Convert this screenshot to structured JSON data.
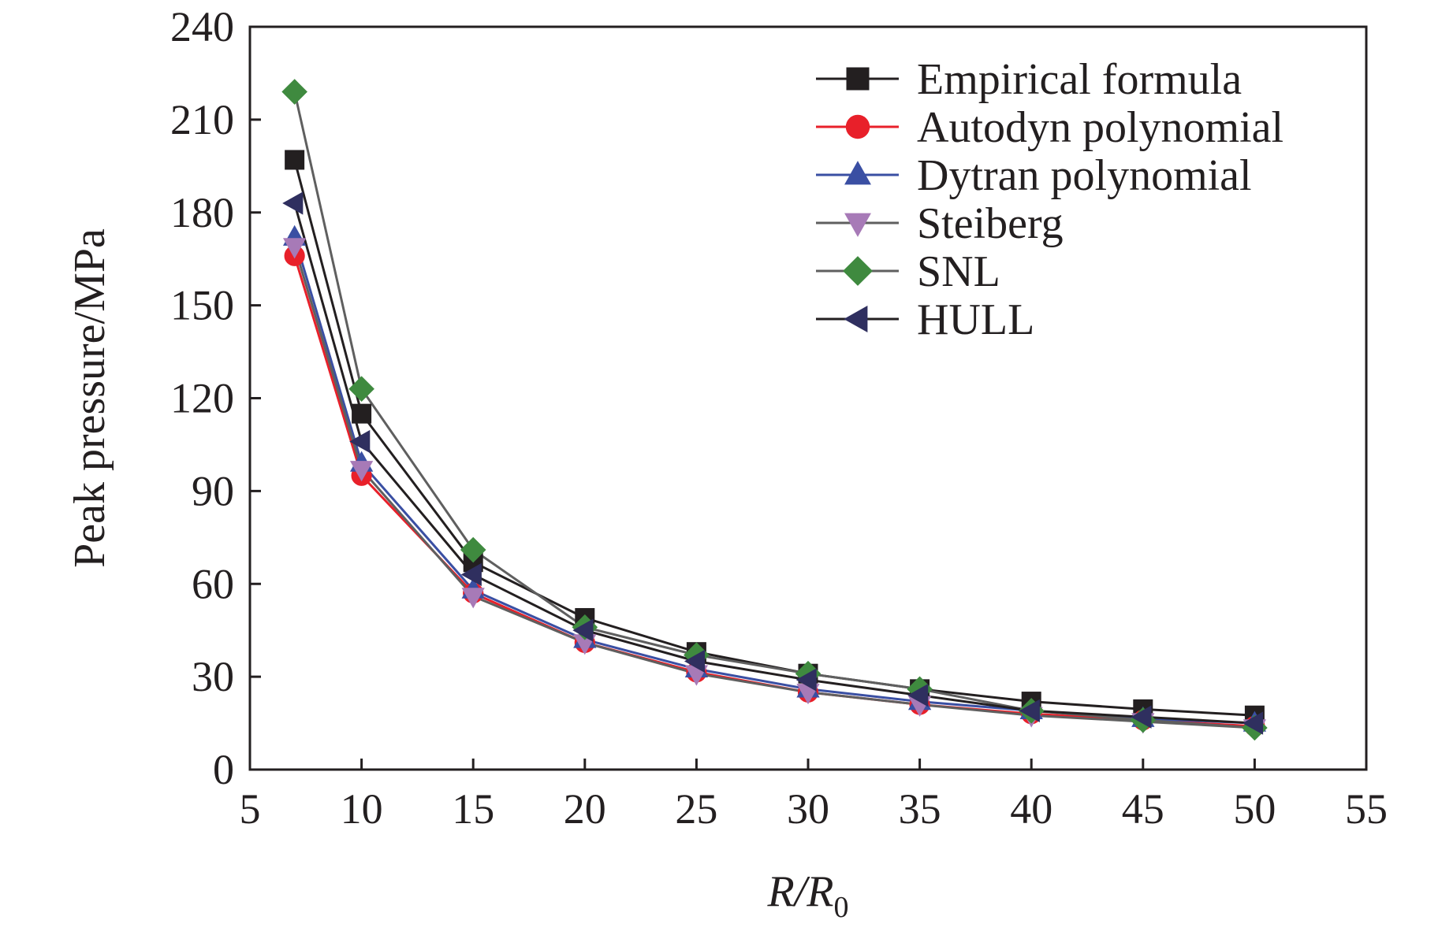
{
  "chart_data": {
    "type": "line",
    "xlabel_main": "R/R",
    "xlabel_sub": "0",
    "ylabel": "Peak pressure/MPa",
    "xlim": [
      5,
      55
    ],
    "ylim": [
      0,
      240
    ],
    "xticks": [
      5,
      10,
      15,
      20,
      25,
      30,
      35,
      40,
      45,
      50,
      55
    ],
    "yticks": [
      0,
      30,
      60,
      90,
      120,
      150,
      180,
      210,
      240
    ],
    "grid": false,
    "legend_position": "top-right",
    "x": [
      7,
      10,
      15,
      20,
      25,
      30,
      35,
      40,
      45,
      50
    ],
    "series": [
      {
        "name": "Empirical formula",
        "marker": "square",
        "color": "#231f20",
        "marker_color": "#231f20",
        "values": [
          197,
          115,
          67,
          49,
          38,
          31,
          26,
          22,
          19.5,
          17.5
        ]
      },
      {
        "name": "Autodyn polynomial",
        "marker": "circle",
        "color": "#e8202a",
        "marker_color": "#e8202a",
        "values": [
          166,
          95,
          57,
          41,
          31.5,
          25,
          21,
          18,
          16,
          14
        ]
      },
      {
        "name": "Dytran polynomial",
        "marker": "triangle-up",
        "color": "#3a4fa3",
        "marker_color": "#3a4fa3",
        "values": [
          172,
          99,
          58,
          42,
          32.5,
          26,
          22,
          19,
          16.5,
          15
        ]
      },
      {
        "name": "Steiberg",
        "marker": "triangle-down",
        "color": "#5f5f5f",
        "marker_color": "#a77ab7",
        "values": [
          169,
          97,
          56,
          41,
          31,
          25,
          21,
          17.5,
          15.5,
          13.5
        ]
      },
      {
        "name": "SNL",
        "marker": "diamond",
        "color": "#5f5f5f",
        "marker_color": "#3f8a3f",
        "values": [
          219,
          123,
          71,
          46,
          37,
          31,
          26,
          19,
          16,
          13.5
        ]
      },
      {
        "name": "HULL",
        "marker": "triangle-left",
        "color": "#231f20",
        "marker_color": "#2f2f5f",
        "values": [
          183,
          106,
          63,
          45,
          35,
          29,
          24,
          19,
          17,
          15
        ]
      }
    ]
  }
}
